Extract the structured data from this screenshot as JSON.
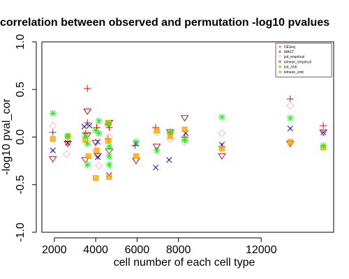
{
  "chart_data": {
    "type": "scatter",
    "title": "correlation between observed and permutation -log10 pvalues",
    "xlabel": "cell number of each cell type",
    "ylabel": "-log10 pval_cor",
    "xlim": [
      1400,
      15500
    ],
    "ylim": [
      -1.0,
      1.0
    ],
    "x_ticks": [
      2000,
      4000,
      6000,
      8000,
      12000
    ],
    "y_ticks": [
      -1.0,
      -0.5,
      0.0,
      0.5,
      1.0
    ],
    "y_tick_labels": [
      "-1.0",
      "-0.5",
      "0.0",
      "0.5",
      "1.0"
    ],
    "legend_position": "top-right",
    "series": [
      {
        "name": "DESeq",
        "marker": "plus",
        "color": "#ff0000",
        "points": [
          [
            1930,
            0.05
          ],
          [
            2650,
            -0.05
          ],
          [
            3500,
            0.04
          ],
          [
            3600,
            0.51
          ],
          [
            3600,
            0.15
          ],
          [
            4000,
            0.07
          ],
          [
            4050,
            0.1
          ],
          [
            4600,
            0.13
          ],
          [
            4600,
            -0.02
          ],
          [
            4650,
            0.1
          ],
          [
            5900,
            -0.09
          ],
          [
            6900,
            0.1
          ],
          [
            7600,
            0.04
          ],
          [
            8300,
            0.0
          ],
          [
            10100,
            -0.1
          ],
          [
            13400,
            0.4
          ],
          [
            15000,
            0.12
          ]
        ]
      },
      {
        "name": "MAST",
        "marker": "x",
        "color": "#0000ff",
        "points": [
          [
            1930,
            -0.14
          ],
          [
            2650,
            -0.06
          ],
          [
            3450,
            0.11
          ],
          [
            3700,
            0.12
          ],
          [
            4100,
            -0.05
          ],
          [
            4100,
            -0.21
          ],
          [
            4650,
            -0.4
          ],
          [
            5950,
            -0.07
          ],
          [
            6900,
            -0.32
          ],
          [
            7550,
            -0.24
          ],
          [
            8350,
            0.04
          ],
          [
            10100,
            -0.08
          ],
          [
            13400,
            0.09
          ],
          [
            15000,
            0.05
          ]
        ]
      },
      {
        "name": "jsd_empirical",
        "marker": "diamond",
        "color": "#ffb6c1",
        "points": [
          [
            1930,
            0.12
          ],
          [
            2600,
            -0.18
          ],
          [
            3550,
            0.05
          ],
          [
            3600,
            0.28
          ],
          [
            4000,
            -0.15
          ],
          [
            4150,
            -0.3
          ],
          [
            4650,
            0.0
          ],
          [
            5950,
            -0.22
          ],
          [
            6950,
            0.05
          ],
          [
            7600,
            -0.02
          ],
          [
            8300,
            -0.05
          ],
          [
            10100,
            0.04
          ],
          [
            13400,
            0.33
          ],
          [
            15000,
            0.05
          ]
        ]
      },
      {
        "name": "klmean_empirical",
        "marker": "triangle-down",
        "color": "#b22222",
        "points": [
          [
            1930,
            -0.23
          ],
          [
            2650,
            -0.07
          ],
          [
            3500,
            -0.24
          ],
          [
            3600,
            0.27
          ],
          [
            3600,
            0.02
          ],
          [
            4000,
            -0.06
          ],
          [
            4100,
            -0.2
          ],
          [
            4650,
            0.15
          ],
          [
            4650,
            -0.15
          ],
          [
            5950,
            -0.25
          ],
          [
            6950,
            -0.1
          ],
          [
            7600,
            0.05
          ],
          [
            8300,
            0.2
          ],
          [
            10100,
            -0.2
          ],
          [
            13400,
            -0.07
          ],
          [
            15000,
            0.05
          ]
        ]
      },
      {
        "name": "jsd_zinb",
        "marker": "square",
        "color": "#ffa500",
        "points": [
          [
            1930,
            -0.02
          ],
          [
            2650,
            0.01
          ],
          [
            3500,
            -0.03
          ],
          [
            3650,
            -0.2
          ],
          [
            4000,
            -0.43
          ],
          [
            4050,
            -0.14
          ],
          [
            4600,
            0.15
          ],
          [
            4600,
            -0.04
          ],
          [
            4650,
            -0.42
          ],
          [
            5950,
            -0.2
          ],
          [
            6950,
            0.07
          ],
          [
            7600,
            0.01
          ],
          [
            8300,
            0.08
          ],
          [
            10100,
            -0.12
          ],
          [
            13400,
            -0.05
          ],
          [
            15000,
            -0.11
          ]
        ]
      },
      {
        "name": "klmean_zinb",
        "marker": "star",
        "color": "#00ff00",
        "points": [
          [
            1930,
            0.25
          ],
          [
            2650,
            0.01
          ],
          [
            3500,
            0.01
          ],
          [
            3600,
            -0.29
          ],
          [
            3600,
            -0.07
          ],
          [
            4000,
            0.07
          ],
          [
            4150,
            0.17
          ],
          [
            4150,
            0.04
          ],
          [
            4600,
            0.14
          ],
          [
            4650,
            -0.1
          ],
          [
            4650,
            -0.2
          ],
          [
            4650,
            -0.29
          ],
          [
            5950,
            -0.05
          ],
          [
            6950,
            -0.14
          ],
          [
            7600,
            0.06
          ],
          [
            8300,
            -0.03
          ],
          [
            10100,
            0.21
          ],
          [
            13400,
            0.2
          ],
          [
            15000,
            -0.09
          ]
        ]
      }
    ]
  }
}
